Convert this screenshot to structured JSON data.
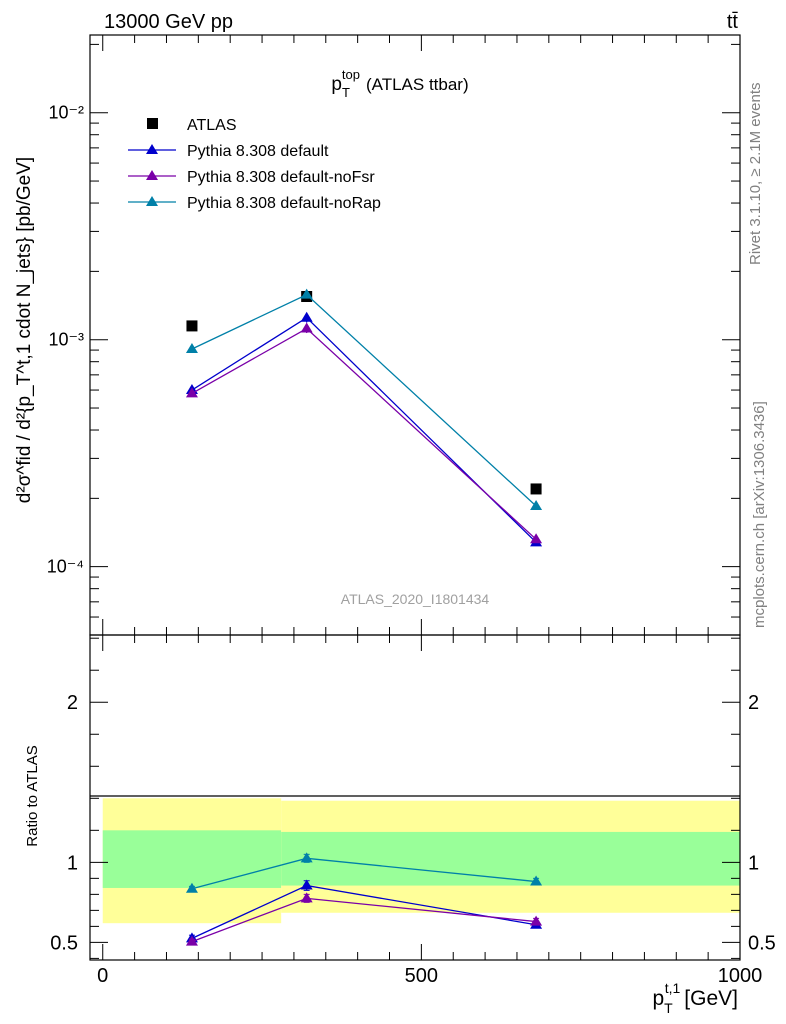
{
  "header": {
    "left": "13000 GeV pp",
    "right": "tt̄"
  },
  "side_labels": {
    "rivet": "Rivet 3.1.10, ≥ 2.1M events",
    "mcplots": "mcplots.cern.ch [arXiv:1306.3436]"
  },
  "chart_data": [
    {
      "type": "line",
      "title": "(ATLAS ttbar)",
      "title_var": "p",
      "title_var_sub": "T",
      "title_var_sup": "top",
      "watermark": "ATLAS_2020_I1801434",
      "ylabel": "d²σ^fid / d²{p_T^t,1 cdot N_jets} [pb/GeV]",
      "yscale": "log",
      "xlim": [
        -20,
        1000
      ],
      "ylim": [
        5e-05,
        0.022
      ],
      "y_tick_labels": [
        "10⁻⁴",
        "10⁻³",
        "10⁻²"
      ],
      "legend_position": "top-left",
      "series": [
        {
          "name": "ATLAS",
          "color": "#000000",
          "marker": "square",
          "x": [
            140,
            320,
            680
          ],
          "values": [
            0.00115,
            0.00155,
            0.00022
          ]
        },
        {
          "name": "Pythia 8.308 default",
          "color": "#0000cc",
          "marker": "triangle",
          "x": [
            140,
            320,
            680
          ],
          "values": [
            0.0006,
            0.00125,
            0.000128
          ],
          "errors": [
            1e-05,
            6e-05,
            4e-06
          ]
        },
        {
          "name": "Pythia 8.308 default-noFsr",
          "color": "#7a00a8",
          "marker": "triangle",
          "x": [
            140,
            320,
            680
          ],
          "values": [
            0.00058,
            0.00112,
            0.000132
          ],
          "errors": [
            1e-05,
            5e-05,
            4e-06
          ]
        },
        {
          "name": "Pythia 8.308 default-noRap",
          "color": "#0080a8",
          "marker": "triangle",
          "x": [
            140,
            320,
            680
          ],
          "values": [
            0.00091,
            0.00158,
            0.000185
          ],
          "errors": [
            1e-05,
            4e-05,
            3e-06
          ]
        }
      ]
    },
    {
      "type": "line",
      "ylabel": "Ratio to ATLAS",
      "xlabel": "[GeV]",
      "xlabel_var": "p",
      "xlabel_var_sub": "T",
      "xlabel_var_sup": "t,1",
      "xlim": [
        -20,
        1000
      ],
      "ylim": [
        0.39,
        2.42
      ],
      "x_ticks": [
        0,
        500,
        1000
      ],
      "y_ticks": [
        0.5,
        1,
        2
      ],
      "bands": {
        "bins": [
          [
            0,
            280
          ],
          [
            280,
            1000
          ]
        ],
        "outer": {
          "color": "#ffff99",
          "lo": [
            0.62,
            0.685
          ],
          "hi": [
            1.4,
            1.385
          ]
        },
        "inner": {
          "color": "#99ff99",
          "lo": [
            0.84,
            0.855
          ],
          "hi": [
            1.2,
            1.19
          ]
        }
      },
      "series": [
        {
          "name": "Pythia 8.308 default",
          "color": "#0000cc",
          "x": [
            140,
            320,
            680
          ],
          "values": [
            0.525,
            0.855,
            0.61
          ],
          "errors": [
            0.02,
            0.03,
            0.02
          ]
        },
        {
          "name": "Pythia 8.308 default-noFsr",
          "color": "#7a00a8",
          "x": [
            140,
            320,
            680
          ],
          "values": [
            0.505,
            0.775,
            0.63
          ],
          "errors": [
            0.015,
            0.025,
            0.02
          ]
        },
        {
          "name": "Pythia 8.308 default-noRap",
          "color": "#0080a8",
          "x": [
            140,
            320,
            680
          ],
          "values": [
            0.835,
            1.025,
            0.88
          ],
          "errors": [
            0.015,
            0.025,
            0.02
          ]
        }
      ]
    }
  ]
}
